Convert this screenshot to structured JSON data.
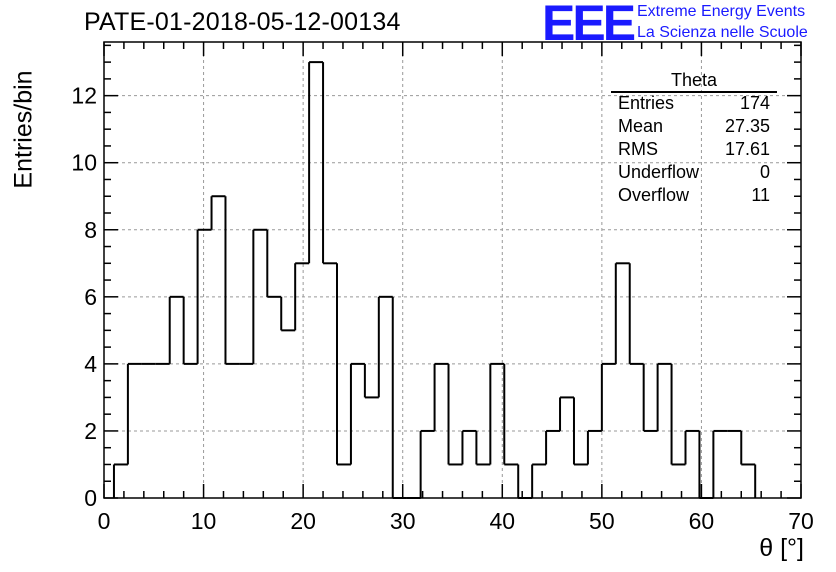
{
  "header": {
    "title": "PATE-01-2018-05-12-00134",
    "logo_text": "EEE",
    "logo_line1": "Extreme Energy Events",
    "logo_line2": "La Scienza nelle Scuole"
  },
  "stats": {
    "title": "Theta",
    "rows": [
      {
        "key": "Entries",
        "value": "174"
      },
      {
        "key": "Mean",
        "value": "27.35"
      },
      {
        "key": "RMS",
        "value": "17.61"
      },
      {
        "key": "Underflow",
        "value": "0"
      },
      {
        "key": "Overflow",
        "value": "11"
      }
    ]
  },
  "chart_data": {
    "type": "bar",
    "title": "PATE-01-2018-05-12-00134",
    "xlabel": "θ [°]",
    "ylabel": "Entries/bin",
    "xlim": [
      0,
      70
    ],
    "ylim": [
      0,
      13.6
    ],
    "grid": true,
    "x_ticks": [
      0,
      10,
      20,
      30,
      40,
      50,
      60,
      70
    ],
    "y_ticks": [
      0,
      2,
      4,
      6,
      8,
      10,
      12
    ],
    "bin_start": 1.0,
    "bin_width": 1.4,
    "values": [
      1,
      4,
      4,
      4,
      6,
      4,
      8,
      9,
      4,
      4,
      8,
      6,
      5,
      7,
      13,
      7,
      1,
      4,
      3,
      6,
      0,
      0,
      2,
      4,
      1,
      2,
      1,
      4,
      1,
      0,
      1,
      2,
      3,
      1,
      2,
      4,
      7,
      4,
      2,
      4,
      1,
      2,
      0,
      2,
      2,
      1
    ],
    "color": "#000000",
    "grid_color": "#999999"
  }
}
